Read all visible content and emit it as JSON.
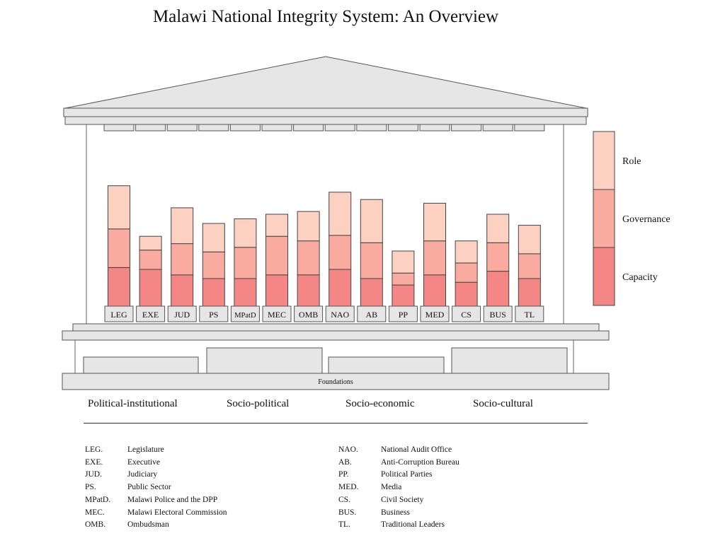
{
  "title": "Malawi National Integrity System: An Overview",
  "foundations_label": "Foundations",
  "pillar_heights_note": "",
  "pillars": [
    {
      "abbr": "LEG",
      "capacity": 0.42,
      "governance": 0.42,
      "role": 0.47
    },
    {
      "abbr": "EXE",
      "capacity": 0.4,
      "governance": 0.21,
      "role": 0.15
    },
    {
      "abbr": "JUD",
      "capacity": 0.34,
      "governance": 0.34,
      "role": 0.39
    },
    {
      "abbr": "PS",
      "capacity": 0.3,
      "governance": 0.29,
      "role": 0.31
    },
    {
      "abbr": "MPatD",
      "capacity": 0.3,
      "governance": 0.34,
      "role": 0.31
    },
    {
      "abbr": "MEC",
      "capacity": 0.34,
      "governance": 0.42,
      "role": 0.24
    },
    {
      "abbr": "OMB",
      "capacity": 0.34,
      "governance": 0.37,
      "role": 0.32
    },
    {
      "abbr": "NAO",
      "capacity": 0.4,
      "governance": 0.37,
      "role": 0.47
    },
    {
      "abbr": "AB",
      "capacity": 0.3,
      "governance": 0.39,
      "role": 0.47
    },
    {
      "abbr": "PP",
      "capacity": 0.23,
      "governance": 0.13,
      "role": 0.24
    },
    {
      "abbr": "MED",
      "capacity": 0.34,
      "governance": 0.37,
      "role": 0.41
    },
    {
      "abbr": "CS",
      "capacity": 0.26,
      "governance": 0.21,
      "role": 0.24
    },
    {
      "abbr": "BUS",
      "capacity": 0.38,
      "governance": 0.31,
      "role": 0.31
    },
    {
      "abbr": "TL",
      "capacity": 0.3,
      "governance": 0.27,
      "role": 0.31
    }
  ],
  "key_legend": [
    {
      "label": "Role",
      "color": "#fcd1c2"
    },
    {
      "label": "Governance",
      "color": "#f8ab9e"
    },
    {
      "label": "Capacity",
      "color": "#f58686"
    }
  ],
  "categories": [
    "Political-institutional",
    "Socio-political",
    "Socio-economic",
    "Socio-cultural"
  ],
  "abbreviations": [
    {
      "abbr": "LEG.",
      "full": "Legislature"
    },
    {
      "abbr": "EXE.",
      "full": "Executive"
    },
    {
      "abbr": "JUD.",
      "full": "Judiciary"
    },
    {
      "abbr": "PS.",
      "full": "Public Sector"
    },
    {
      "abbr": "MPatD.",
      "full": "Malawi Police and the DPP"
    },
    {
      "abbr": "MEC.",
      "full": "Malawi Electoral Commission"
    },
    {
      "abbr": "OMB.",
      "full": "Ombudsman"
    },
    {
      "abbr": "NAO.",
      "full": "National Audit Office"
    },
    {
      "abbr": "AB.",
      "full": "Anti-Corruption Bureau"
    },
    {
      "abbr": "PP.",
      "full": "Political Parties"
    },
    {
      "abbr": "MED.",
      "full": "Media"
    },
    {
      "abbr": "CS.",
      "full": "Civil Society"
    },
    {
      "abbr": "BUS.",
      "full": "Business"
    },
    {
      "abbr": "TL.",
      "full": "Traditional Leaders"
    }
  ]
}
